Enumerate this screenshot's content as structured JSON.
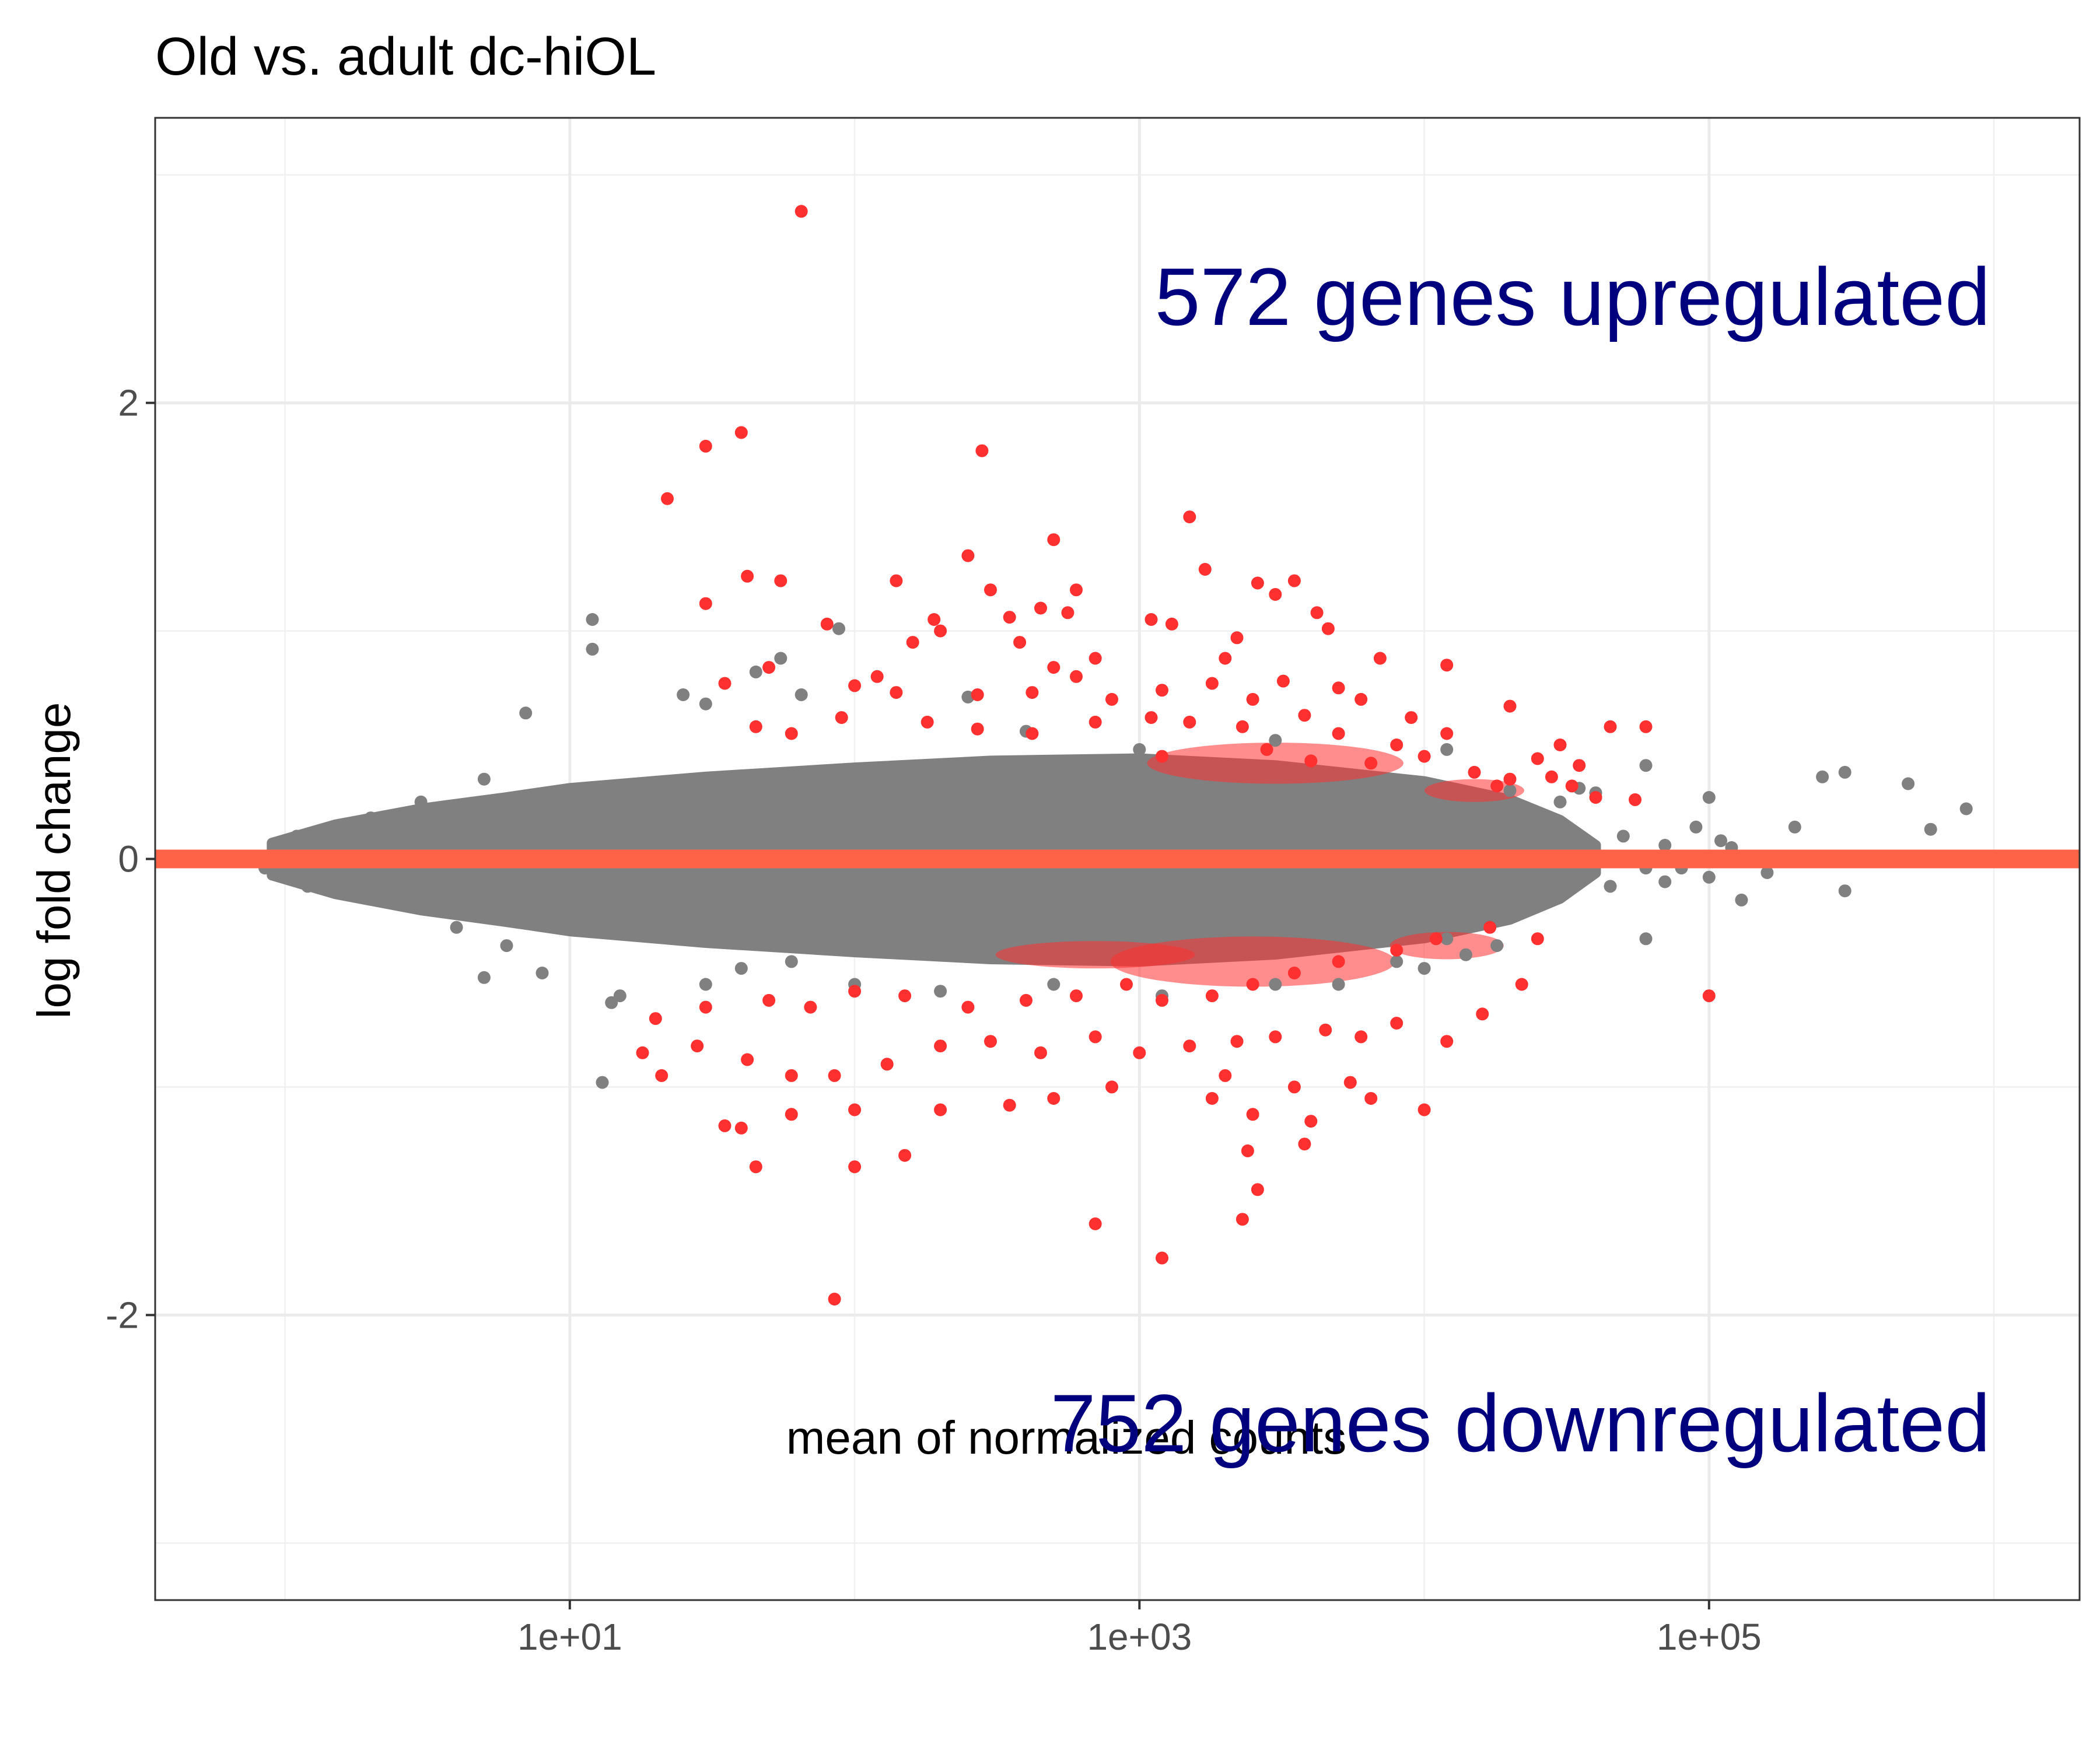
{
  "chart_data": {
    "type": "scatter",
    "title": "Old vs. adult dc-hiOL",
    "xlabel": "mean of normalized counts",
    "ylabel": "log fold change",
    "x_scale": "log10",
    "xlim": [
      0.35,
      2000000
    ],
    "ylim": [
      -3.25,
      3.25
    ],
    "x_ticks": [
      10,
      1000,
      100000
    ],
    "x_tick_labels": [
      "1e+01",
      "1e+03",
      "1e+05"
    ],
    "x_minor_ticks": [
      1,
      100,
      10000,
      1000000
    ],
    "y_ticks": [
      -2,
      0,
      2
    ],
    "y_tick_labels": [
      "-2",
      "0",
      "2"
    ],
    "y_minor_ticks": [
      -3,
      -1,
      1,
      3
    ],
    "grid": true,
    "reference_line": {
      "y": 0,
      "color": "#ff6347"
    },
    "colors": {
      "nonsignificant": "#808080",
      "significant": "#ff3030",
      "annotation": "#00007f",
      "reference": "#ff6347"
    },
    "annotations": [
      {
        "text": "572 genes upregulated",
        "x": 8000,
        "y": 2.5
      },
      {
        "text": "752 genes downregulated",
        "x": 8000,
        "y": -2.5
      }
    ],
    "series": [
      {
        "name": "",
        "role": "nonsignificant",
        "color": "#808080",
        "points": [
          [
            12,
            1.05
          ],
          [
            12,
            0.92
          ],
          [
            7,
            0.64
          ],
          [
            25,
            0.72
          ],
          [
            55,
            0.88
          ],
          [
            45,
            0.82
          ],
          [
            30,
            0.68
          ],
          [
            88,
            1.01
          ],
          [
            65,
            0.72
          ],
          [
            250,
            0.71
          ],
          [
            400,
            0.56
          ],
          [
            1000,
            0.48
          ],
          [
            3000,
            0.52
          ],
          [
            12000,
            0.48
          ],
          [
            60000,
            0.41
          ],
          [
            100000,
            0.27
          ],
          [
            90000,
            0.14
          ],
          [
            250000,
            0.36
          ],
          [
            300000,
            0.38
          ],
          [
            500000,
            0.33
          ],
          [
            200000,
            0.14
          ],
          [
            800000,
            0.22
          ],
          [
            600000,
            0.13
          ],
          [
            35000,
            0.31
          ],
          [
            40000,
            0.29
          ],
          [
            30000,
            0.25
          ],
          [
            20000,
            0.3
          ],
          [
            22000,
            0.19
          ],
          [
            18000,
            0.12
          ],
          [
            32000,
            0.1
          ],
          [
            50000,
            0.1
          ],
          [
            70000,
            0.06
          ],
          [
            110000,
            0.08
          ],
          [
            120000,
            0.05
          ],
          [
            80000,
            -0.04
          ],
          [
            25000,
            -0.08
          ],
          [
            32000,
            -0.1
          ],
          [
            45000,
            -0.12
          ],
          [
            60000,
            -0.04
          ],
          [
            70000,
            -0.1
          ],
          [
            100000,
            -0.08
          ],
          [
            130000,
            -0.18
          ],
          [
            160000,
            -0.06
          ],
          [
            300000,
            -0.14
          ],
          [
            60000,
            -0.35
          ],
          [
            15000,
            -0.25
          ],
          [
            20000,
            -0.22
          ],
          [
            12000,
            -0.35
          ],
          [
            14000,
            -0.42
          ],
          [
            10000,
            -0.48
          ],
          [
            18000,
            -0.38
          ],
          [
            8000,
            -0.45
          ],
          [
            8,
            -0.5
          ],
          [
            5,
            -0.52
          ],
          [
            15,
            -0.6
          ],
          [
            14,
            -0.63
          ],
          [
            13,
            -0.98
          ],
          [
            30,
            -0.55
          ],
          [
            40,
            -0.48
          ],
          [
            60,
            -0.45
          ],
          [
            100,
            -0.55
          ],
          [
            200,
            -0.58
          ],
          [
            500,
            -0.55
          ],
          [
            1200,
            -0.6
          ],
          [
            3000,
            -0.55
          ],
          [
            5000,
            -0.55
          ],
          [
            1,
            0.05
          ],
          [
            0.9,
            0.02
          ],
          [
            0.85,
            -0.04
          ],
          [
            1.1,
            0.1
          ],
          [
            1.2,
            -0.12
          ],
          [
            2,
            0.18
          ],
          [
            3,
            0.25
          ],
          [
            4,
            -0.3
          ],
          [
            5,
            0.35
          ],
          [
            6,
            -0.38
          ]
        ]
      },
      {
        "name": "",
        "role": "significant",
        "color": "#ff3030",
        "points": [
          [
            65,
            2.84
          ],
          [
            30,
            1.81
          ],
          [
            40,
            1.87
          ],
          [
            280,
            1.79
          ],
          [
            22,
            1.58
          ],
          [
            1500,
            1.5
          ],
          [
            500,
            1.4
          ],
          [
            42,
            1.24
          ],
          [
            55,
            1.22
          ],
          [
            250,
            1.33
          ],
          [
            1700,
            1.27
          ],
          [
            140,
            1.22
          ],
          [
            300,
            1.18
          ],
          [
            2600,
            1.21
          ],
          [
            3500,
            1.22
          ],
          [
            3000,
            1.16
          ],
          [
            600,
            1.18
          ],
          [
            30,
            1.12
          ],
          [
            80,
            1.03
          ],
          [
            190,
            1.05
          ],
          [
            200,
            1.0
          ],
          [
            350,
            1.06
          ],
          [
            450,
            1.1
          ],
          [
            560,
            1.08
          ],
          [
            1100,
            1.05
          ],
          [
            1300,
            1.03
          ],
          [
            4200,
            1.08
          ],
          [
            4600,
            1.01
          ],
          [
            2200,
            0.97
          ],
          [
            7000,
            0.88
          ],
          [
            12000,
            0.85
          ],
          [
            2000,
            0.88
          ],
          [
            700,
            0.88
          ],
          [
            500,
            0.84
          ],
          [
            600,
            0.8
          ],
          [
            380,
            0.95
          ],
          [
            160,
            0.95
          ],
          [
            420,
            0.73
          ],
          [
            270,
            0.72
          ],
          [
            140,
            0.73
          ],
          [
            120,
            0.8
          ],
          [
            100,
            0.76
          ],
          [
            50,
            0.84
          ],
          [
            35,
            0.77
          ],
          [
            1200,
            0.74
          ],
          [
            1800,
            0.77
          ],
          [
            2500,
            0.7
          ],
          [
            3200,
            0.78
          ],
          [
            5000,
            0.75
          ],
          [
            6000,
            0.7
          ],
          [
            800,
            0.7
          ],
          [
            3800,
            0.63
          ],
          [
            9000,
            0.62
          ],
          [
            12000,
            0.55
          ],
          [
            20000,
            0.67
          ],
          [
            5000,
            0.55
          ],
          [
            8000,
            0.5
          ],
          [
            2300,
            0.58
          ],
          [
            1500,
            0.6
          ],
          [
            1100,
            0.62
          ],
          [
            700,
            0.6
          ],
          [
            420,
            0.55
          ],
          [
            270,
            0.57
          ],
          [
            180,
            0.6
          ],
          [
            90,
            0.62
          ],
          [
            60,
            0.55
          ],
          [
            45,
            0.58
          ],
          [
            1200,
            0.45
          ],
          [
            2800,
            0.48
          ],
          [
            4000,
            0.43
          ],
          [
            6500,
            0.42
          ],
          [
            10000,
            0.45
          ],
          [
            15000,
            0.38
          ],
          [
            20000,
            0.35
          ],
          [
            25000,
            0.44
          ],
          [
            30000,
            0.5
          ],
          [
            35000,
            0.41
          ],
          [
            60000,
            0.58
          ],
          [
            40000,
            0.27
          ],
          [
            55000,
            0.26
          ],
          [
            18000,
            0.32
          ],
          [
            17000,
            -0.3
          ],
          [
            25000,
            -0.35
          ],
          [
            11000,
            -0.35
          ],
          [
            8000,
            -0.4
          ],
          [
            5000,
            -0.45
          ],
          [
            3500,
            -0.5
          ],
          [
            2500,
            -0.55
          ],
          [
            1800,
            -0.6
          ],
          [
            1200,
            -0.62
          ],
          [
            900,
            -0.55
          ],
          [
            600,
            -0.6
          ],
          [
            400,
            -0.62
          ],
          [
            250,
            -0.65
          ],
          [
            150,
            -0.6
          ],
          [
            100,
            -0.58
          ],
          [
            70,
            -0.65
          ],
          [
            50,
            -0.62
          ],
          [
            30,
            -0.65
          ],
          [
            20,
            -0.7
          ],
          [
            18,
            -0.85
          ],
          [
            21,
            -0.95
          ],
          [
            28,
            -0.82
          ],
          [
            42,
            -0.88
          ],
          [
            60,
            -0.95
          ],
          [
            85,
            -0.95
          ],
          [
            130,
            -0.9
          ],
          [
            200,
            -0.82
          ],
          [
            300,
            -0.8
          ],
          [
            450,
            -0.85
          ],
          [
            700,
            -0.78
          ],
          [
            1000,
            -0.85
          ],
          [
            1500,
            -0.82
          ],
          [
            2200,
            -0.8
          ],
          [
            3000,
            -0.78
          ],
          [
            4500,
            -0.75
          ],
          [
            6000,
            -0.78
          ],
          [
            8000,
            -0.72
          ],
          [
            12000,
            -0.8
          ],
          [
            16000,
            -0.68
          ],
          [
            22000,
            -0.55
          ],
          [
            2000,
            -0.95
          ],
          [
            3500,
            -1.0
          ],
          [
            5500,
            -0.98
          ],
          [
            6500,
            -1.05
          ],
          [
            10000,
            -1.1
          ],
          [
            4000,
            -1.15
          ],
          [
            2500,
            -1.12
          ],
          [
            1800,
            -1.05
          ],
          [
            800,
            -1.0
          ],
          [
            500,
            -1.05
          ],
          [
            350,
            -1.08
          ],
          [
            200,
            -1.1
          ],
          [
            100,
            -1.1
          ],
          [
            60,
            -1.12
          ],
          [
            40,
            -1.18
          ],
          [
            35,
            -1.17
          ],
          [
            45,
            -1.35
          ],
          [
            100,
            -1.35
          ],
          [
            150,
            -1.3
          ],
          [
            2400,
            -1.28
          ],
          [
            3800,
            -1.25
          ],
          [
            2600,
            -1.45
          ],
          [
            2300,
            -1.58
          ],
          [
            700,
            -1.6
          ],
          [
            1200,
            -1.75
          ],
          [
            85,
            -1.93
          ],
          [
            100000,
            -0.6
          ],
          [
            45000,
            0.58
          ],
          [
            28000,
            0.36
          ],
          [
            33000,
            0.32
          ]
        ]
      }
    ]
  }
}
